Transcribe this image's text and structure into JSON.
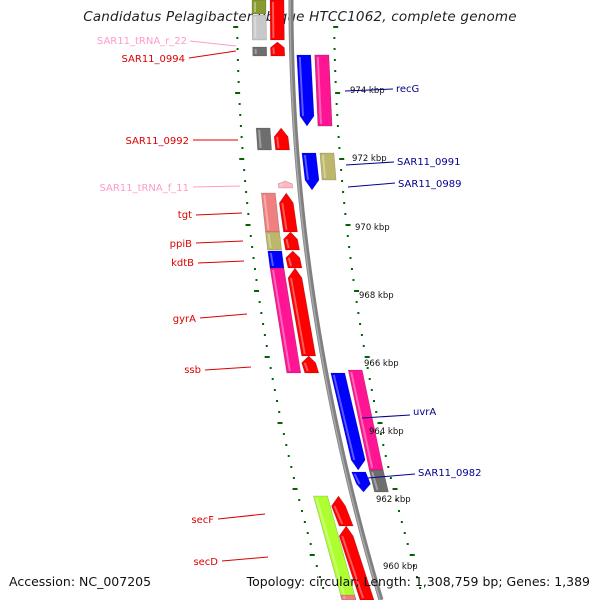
{
  "title": "Candidatus Pelagibacter ubique HTCC1062, complete genome",
  "footer": {
    "accession": "Accession: NC_007205",
    "summary": "Topology: circular; Length: 1,308,759 bp; Genes: 1,389"
  },
  "colors": {
    "forward_cds": "#ff0000",
    "reverse_cds": "#0000ff",
    "cog_magenta": "#ff1493",
    "cog_olive": "#bdb76b",
    "cog_gray": "#6e6e6e",
    "cog_orange": "#ff8c00",
    "cog_green": "#adff2f",
    "cog_salmon": "#f08080",
    "trna": "#ffb6c1",
    "backbone": "#808080",
    "ticks": "#006400"
  },
  "scale_labels": [
    "974 kbp",
    "972 kbp",
    "970 kbp",
    "968 kbp",
    "966 kbp",
    "964 kbp",
    "962 kbp",
    "960 kbp"
  ],
  "left_genes": [
    {
      "label": "SAR11_tRNA_r_22",
      "color": "#ff9ac8"
    },
    {
      "label": "SAR11_0994",
      "color": "#dd0000"
    },
    {
      "label": "SAR11_0992",
      "color": "#dd0000"
    },
    {
      "label": "SAR11_tRNA_f_11",
      "color": "#ff9ac8"
    },
    {
      "label": "tgt",
      "color": "#dd0000"
    },
    {
      "label": "ppiB",
      "color": "#dd0000"
    },
    {
      "label": "kdtB",
      "color": "#dd0000"
    },
    {
      "label": "gyrA",
      "color": "#dd0000"
    },
    {
      "label": "ssb",
      "color": "#dd0000"
    },
    {
      "label": "secF",
      "color": "#dd0000"
    },
    {
      "label": "secD",
      "color": "#dd0000"
    }
  ],
  "right_genes": [
    {
      "label": "recG",
      "color": "#00008b"
    },
    {
      "label": "SAR11_0991",
      "color": "#00008b"
    },
    {
      "label": "SAR11_0989",
      "color": "#00008b"
    },
    {
      "label": "uvrA",
      "color": "#00008b"
    },
    {
      "label": "SAR11_0982",
      "color": "#00008b"
    }
  ]
}
